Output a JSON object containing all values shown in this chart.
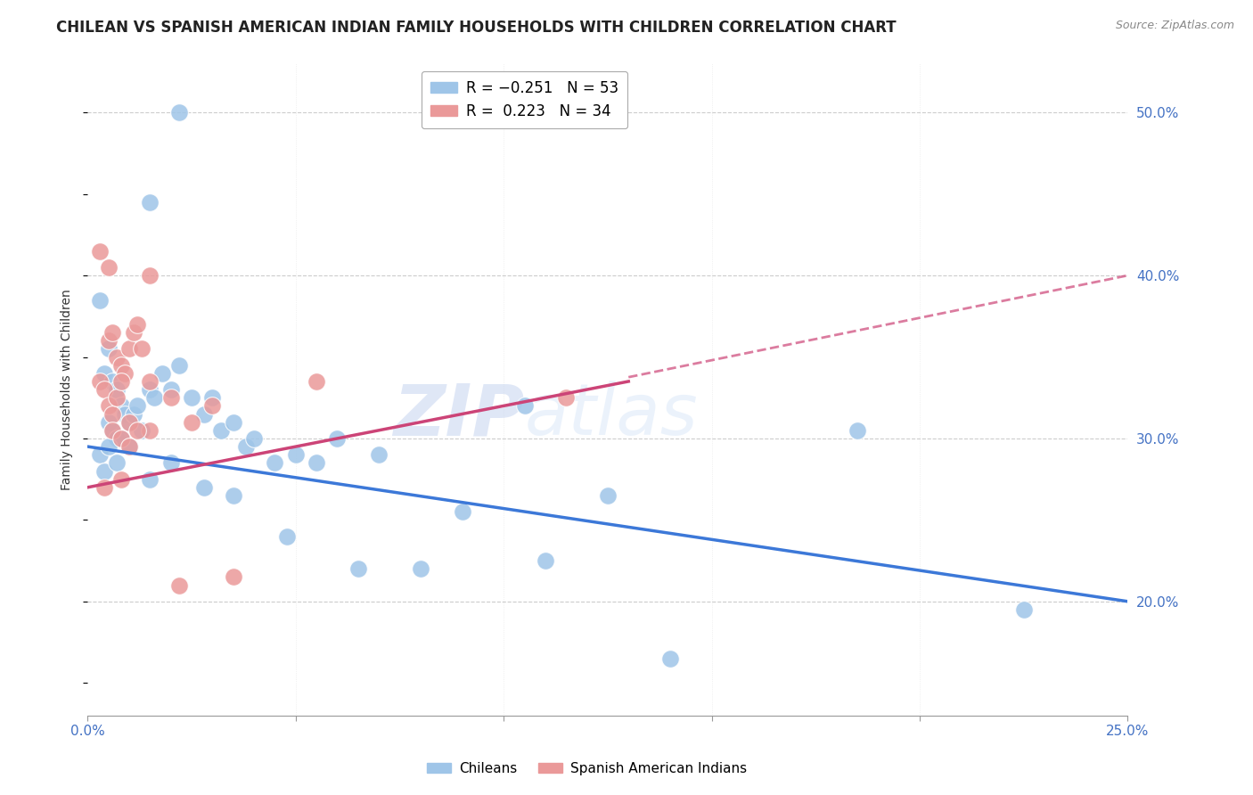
{
  "title": "CHILEAN VS SPANISH AMERICAN INDIAN FAMILY HOUSEHOLDS WITH CHILDREN CORRELATION CHART",
  "source": "Source: ZipAtlas.com",
  "ylabel": "Family Households with Children",
  "xlim": [
    0.0,
    25.0
  ],
  "ylim": [
    13.0,
    53.0
  ],
  "legend_blue_r": "-0.251",
  "legend_blue_n": "53",
  "legend_pink_r": "0.223",
  "legend_pink_n": "34",
  "blue_color": "#9fc5e8",
  "pink_color": "#ea9999",
  "line_blue_color": "#3c78d8",
  "line_pink_color": "#cc4477",
  "watermark_zip": "ZIP",
  "watermark_atlas": "atlas",
  "blue_dots_x": [
    2.2,
    1.5,
    0.3,
    0.5,
    0.4,
    0.6,
    0.7,
    0.8,
    0.9,
    0.5,
    0.6,
    0.7,
    0.8,
    1.0,
    1.1,
    1.2,
    1.3,
    1.5,
    1.6,
    1.8,
    2.0,
    2.2,
    2.5,
    2.8,
    3.0,
    3.2,
    3.5,
    3.8,
    4.0,
    4.5,
    5.0,
    5.5,
    6.0,
    7.0,
    8.0,
    9.0,
    10.5,
    12.5,
    14.0,
    18.5,
    22.5,
    0.3,
    0.4,
    0.5,
    0.7,
    1.0,
    1.5,
    2.0,
    2.8,
    3.5,
    4.8,
    6.5,
    11.0
  ],
  "blue_dots_y": [
    50.0,
    44.5,
    38.5,
    35.5,
    34.0,
    33.5,
    33.0,
    32.0,
    31.5,
    31.0,
    30.5,
    30.0,
    30.0,
    31.0,
    31.5,
    32.0,
    30.5,
    33.0,
    32.5,
    34.0,
    33.0,
    34.5,
    32.5,
    31.5,
    32.5,
    30.5,
    31.0,
    29.5,
    30.0,
    28.5,
    29.0,
    28.5,
    30.0,
    29.0,
    22.0,
    25.5,
    32.0,
    26.5,
    16.5,
    30.5,
    19.5,
    29.0,
    28.0,
    29.5,
    28.5,
    29.5,
    27.5,
    28.5,
    27.0,
    26.5,
    24.0,
    22.0,
    22.5
  ],
  "pink_dots_x": [
    0.3,
    0.5,
    0.6,
    0.7,
    0.8,
    0.9,
    1.0,
    1.1,
    1.2,
    1.3,
    1.5,
    0.4,
    0.5,
    0.6,
    0.7,
    0.8,
    1.0,
    1.5,
    2.0,
    2.5,
    3.0,
    5.5,
    0.3,
    0.5,
    0.6,
    0.8,
    1.0,
    1.5,
    2.2,
    3.5,
    0.4,
    0.8,
    1.2,
    11.5
  ],
  "pink_dots_y": [
    33.5,
    36.0,
    36.5,
    35.0,
    34.5,
    34.0,
    35.5,
    36.5,
    37.0,
    35.5,
    40.0,
    33.0,
    32.0,
    31.5,
    32.5,
    33.5,
    31.0,
    33.5,
    32.5,
    31.0,
    32.0,
    33.5,
    41.5,
    40.5,
    30.5,
    30.0,
    29.5,
    30.5,
    21.0,
    21.5,
    27.0,
    27.5,
    30.5,
    32.5
  ],
  "blue_line_x": [
    0.0,
    25.0
  ],
  "blue_line_y": [
    29.5,
    20.0
  ],
  "pink_line_x": [
    0.0,
    25.0
  ],
  "pink_line_y": [
    27.0,
    40.0
  ],
  "pink_solid_line_x": [
    0.0,
    13.0
  ],
  "pink_solid_line_y": [
    27.0,
    33.5
  ],
  "grid_color": "#cccccc",
  "right_tick_color": "#4472c4",
  "background_color": "#ffffff",
  "title_fontsize": 12,
  "tick_fontsize": 11,
  "yticks": [
    20,
    30,
    40,
    50
  ],
  "ytick_labels": [
    "20.0%",
    "30.0%",
    "40.0%",
    "50.0%"
  ]
}
